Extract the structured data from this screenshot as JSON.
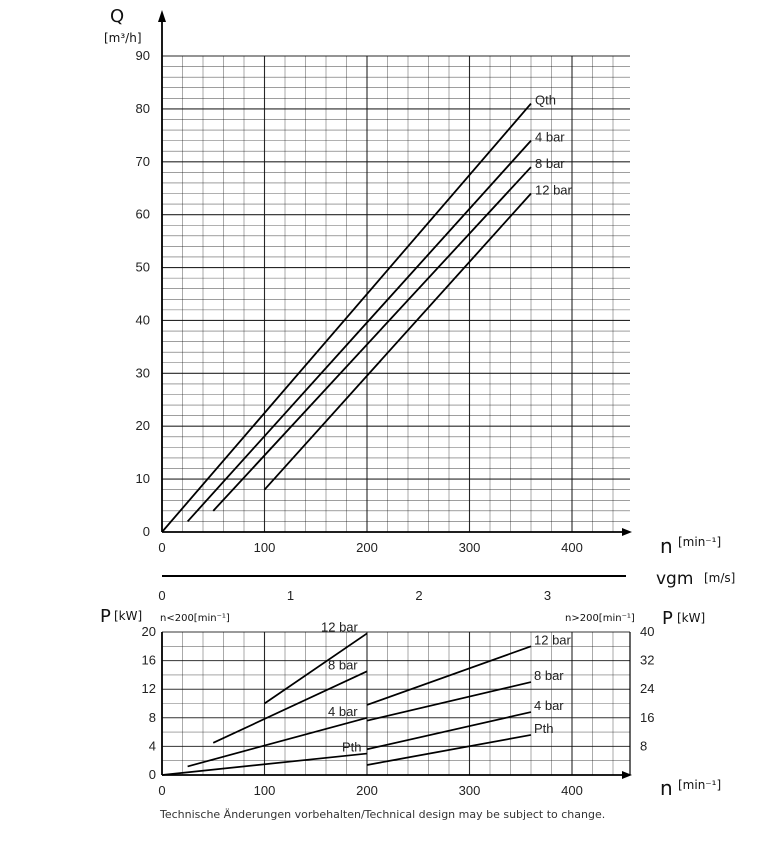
{
  "chart_data": [
    {
      "type": "line",
      "xlabel_symbol": "n",
      "xlabel_unit": "[min⁻¹]",
      "ylabel_symbol": "Q",
      "ylabel_unit": "[m³/h]",
      "xlim": [
        0,
        450
      ],
      "ylim": [
        0,
        90
      ],
      "x_ticks": [
        "0",
        "100",
        "200",
        "300",
        "400"
      ],
      "y_ticks": [
        "0",
        "10",
        "20",
        "30",
        "40",
        "50",
        "60",
        "70",
        "80",
        "90"
      ],
      "grid": true,
      "series": [
        {
          "name": "Qth",
          "points": [
            [
              0,
              0
            ],
            [
              360,
              81
            ]
          ]
        },
        {
          "name": "4 bar",
          "points": [
            [
              25,
              2
            ],
            [
              360,
              74
            ]
          ]
        },
        {
          "name": "8 bar",
          "points": [
            [
              50,
              4
            ],
            [
              360,
              69
            ]
          ]
        },
        {
          "name": "12 bar",
          "points": [
            [
              100,
              8
            ],
            [
              360,
              64
            ]
          ]
        }
      ]
    },
    {
      "type": "line",
      "xlabel_symbol": "vgm",
      "xlabel_unit": "[m/s]",
      "x_ticks": [
        "0",
        "1",
        "2",
        "3"
      ],
      "note": "secondary velocity scale aligned with n axis (3 m/s ≈ 360 min⁻¹)"
    },
    {
      "type": "line",
      "xlabel_symbol": "n",
      "xlabel_unit": "[min⁻¹]",
      "ylabel_symbol": "P",
      "ylabel_unit": "[kW]",
      "left_axis_note": "n<200[min⁻¹]",
      "right_axis_note": "n>200[min⁻¹]",
      "xlim": [
        0,
        450
      ],
      "ylim_left": [
        0,
        20
      ],
      "ylim_right": [
        0,
        40
      ],
      "x_ticks": [
        "0",
        "100",
        "200",
        "300",
        "400"
      ],
      "y_ticks_left": [
        "0",
        "4",
        "8",
        "12",
        "16",
        "20"
      ],
      "y_ticks_right": [
        "8",
        "16",
        "24",
        "32",
        "40"
      ],
      "grid": true,
      "series": [
        {
          "name": "12 bar",
          "range": "n<200",
          "points": [
            [
              100,
              10
            ],
            [
              200,
              19.8
            ]
          ]
        },
        {
          "name": "8 bar",
          "range": "n<200",
          "points": [
            [
              50,
              4.5
            ],
            [
              200,
              14.5
            ]
          ]
        },
        {
          "name": "4 bar",
          "range": "n<200",
          "points": [
            [
              25,
              1.2
            ],
            [
              200,
              8
            ]
          ]
        },
        {
          "name": "Pth",
          "range": "n<200",
          "points": [
            [
              0,
              0
            ],
            [
              200,
              3
            ]
          ]
        },
        {
          "name": "12 bar",
          "range": "n>200",
          "points": [
            [
              200,
              19.6
            ],
            [
              360,
              36
            ]
          ]
        },
        {
          "name": "8 bar",
          "range": "n>200",
          "points": [
            [
              200,
              15.2
            ],
            [
              360,
              26
            ]
          ]
        },
        {
          "name": "4 bar",
          "range": "n>200",
          "points": [
            [
              200,
              7.2
            ],
            [
              360,
              17.6
            ]
          ]
        },
        {
          "name": "Pth",
          "range": "n>200",
          "points": [
            [
              200,
              2.8
            ],
            [
              360,
              11.2
            ]
          ]
        }
      ]
    }
  ],
  "footer": "Technische Änderungen vorbehalten/Technical design may be subject to change."
}
